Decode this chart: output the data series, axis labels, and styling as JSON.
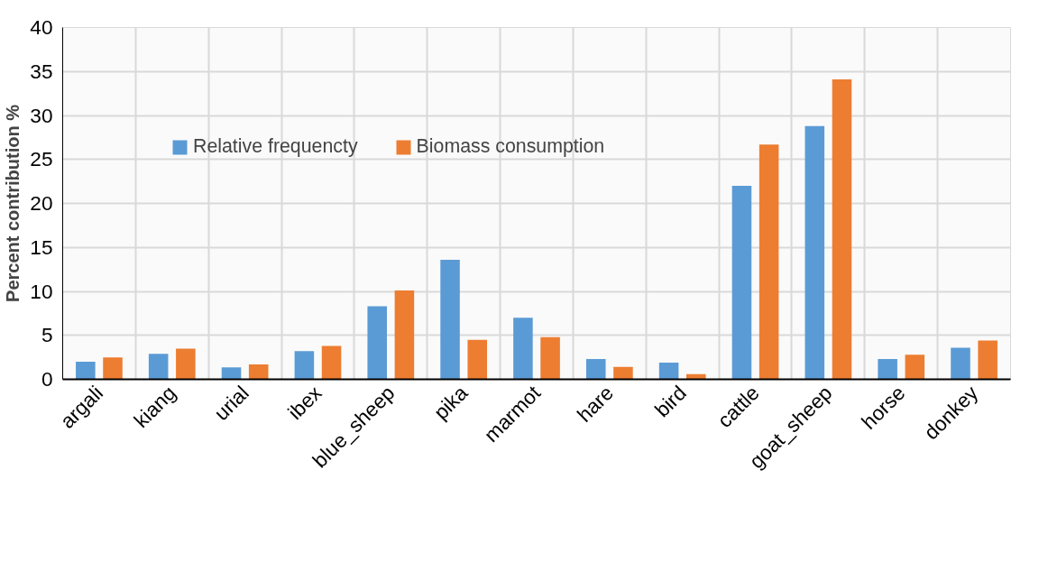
{
  "chart_data": {
    "type": "bar",
    "ylabel": "Percent contribution %",
    "categories": [
      "argali",
      "kiang",
      "urial",
      "ibex",
      "blue_sheep",
      "pika",
      "marmot",
      "hare",
      "bird",
      "cattle",
      "goat_sheep",
      "horse",
      "donkey"
    ],
    "series": [
      {
        "name": "Relative frequencty",
        "color": "#5b9bd5",
        "values": [
          2.0,
          2.9,
          1.35,
          3.2,
          8.3,
          13.6,
          7.0,
          2.3,
          1.9,
          22.0,
          28.8,
          2.3,
          3.6
        ]
      },
      {
        "name": "Biomass consumption",
        "color": "#ed7d31",
        "values": [
          2.5,
          3.5,
          1.7,
          3.8,
          10.1,
          4.5,
          4.8,
          1.4,
          0.6,
          26.7,
          34.1,
          2.8,
          4.4
        ]
      }
    ],
    "ylim": [
      0,
      40
    ],
    "yticks": [
      0,
      5,
      10,
      15,
      20,
      25,
      30,
      35,
      40
    ],
    "grid": true,
    "legend": "top left"
  }
}
